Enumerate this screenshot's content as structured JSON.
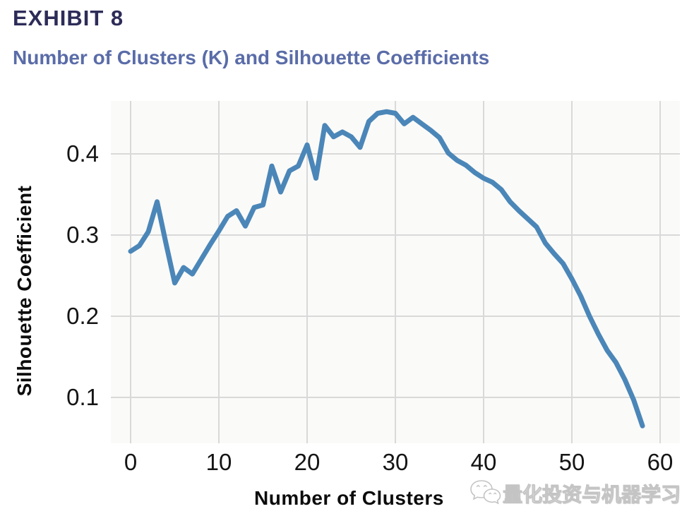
{
  "header": {
    "exhibit_label": "EXHIBIT 8",
    "chart_title": "Number of Clusters (K) and Silhouette Coefficients"
  },
  "watermark": {
    "icon": "wechat-chat-bubbles-icon",
    "text": "量化投资与机器学习"
  },
  "colors": {
    "title": "#2d2c58",
    "subtitle": "#5a6ca8",
    "line": "#4b86b8",
    "gridline": "#d9d9d9",
    "axis_text": "#141414",
    "plot_bg": "#fafaf8"
  },
  "chart_data": {
    "type": "line",
    "title": "Number of Clusters (K) and Silhouette Coefficients",
    "xlabel": "Number of Clusters",
    "ylabel": "Silhouette Coefficient",
    "xlim": [
      -2.24,
      62.24
    ],
    "ylim": [
      0.0435,
      0.4652
    ],
    "xticks": [
      0,
      10,
      20,
      30,
      40,
      50,
      60
    ],
    "yticks": [
      0.1,
      0.2,
      0.3,
      0.4
    ],
    "grid": true,
    "legend": false,
    "series": [
      {
        "name": "Silhouette Coefficient",
        "x": [
          0,
          1,
          2,
          3,
          4,
          5,
          6,
          7,
          8,
          9,
          10,
          11,
          12,
          13,
          14,
          15,
          16,
          17,
          18,
          19,
          20,
          21,
          22,
          23,
          24,
          25,
          26,
          27,
          28,
          29,
          30,
          31,
          32,
          33,
          34,
          35,
          36,
          37,
          38,
          39,
          40,
          41,
          42,
          43,
          44,
          45,
          46,
          47,
          48,
          49,
          50,
          51,
          52,
          53,
          54,
          55,
          56,
          57,
          58
        ],
        "y": [
          0.28,
          0.287,
          0.304,
          0.341,
          0.29,
          0.241,
          0.26,
          0.252,
          0.27,
          0.288,
          0.305,
          0.323,
          0.33,
          0.311,
          0.334,
          0.337,
          0.385,
          0.353,
          0.379,
          0.385,
          0.411,
          0.37,
          0.435,
          0.421,
          0.427,
          0.421,
          0.408,
          0.44,
          0.45,
          0.452,
          0.45,
          0.437,
          0.445,
          0.437,
          0.429,
          0.42,
          0.401,
          0.392,
          0.386,
          0.377,
          0.37,
          0.365,
          0.356,
          0.341,
          0.33,
          0.32,
          0.31,
          0.29,
          0.277,
          0.265,
          0.246,
          0.225,
          0.2,
          0.178,
          0.158,
          0.143,
          0.122,
          0.097,
          0.065
        ]
      }
    ]
  }
}
